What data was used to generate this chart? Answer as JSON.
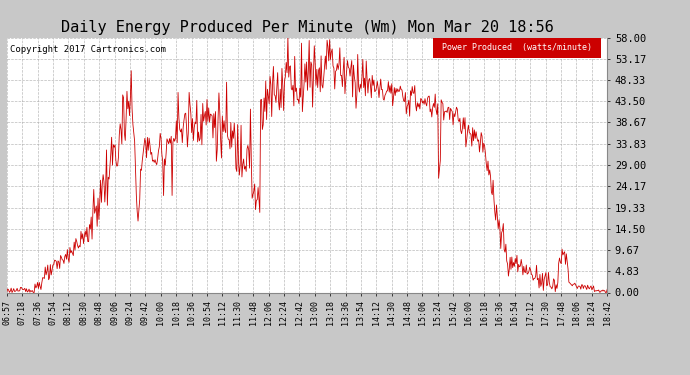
{
  "title": "Daily Energy Produced Per Minute (Wm) Mon Mar 20 18:56",
  "copyright": "Copyright 2017 Cartronics.com",
  "legend_label": "Power Produced  (watts/minute)",
  "legend_bg": "#CC0000",
  "legend_text_color": "#FFFFFF",
  "line_color": "#CC0000",
  "bg_color": "#C8C8C8",
  "plot_bg_color": "#FFFFFF",
  "grid_color": "#AAAAAA",
  "title_fontsize": 11,
  "yticks": [
    0.0,
    4.83,
    9.67,
    14.5,
    19.33,
    24.17,
    29.0,
    33.83,
    38.67,
    43.5,
    48.33,
    53.17,
    58.0
  ],
  "ytick_labels": [
    "0.00",
    "4.83",
    "9.67",
    "14.50",
    "19.33",
    "24.17",
    "29.00",
    "33.83",
    "38.67",
    "43.50",
    "48.33",
    "53.17",
    "58.00"
  ],
  "xtick_labels": [
    "06:57",
    "07:18",
    "07:36",
    "07:54",
    "08:12",
    "08:30",
    "08:48",
    "09:06",
    "09:24",
    "09:42",
    "10:00",
    "10:18",
    "10:36",
    "10:54",
    "11:12",
    "11:30",
    "11:48",
    "12:06",
    "12:24",
    "12:42",
    "13:00",
    "13:18",
    "13:36",
    "13:54",
    "14:12",
    "14:30",
    "14:48",
    "15:06",
    "15:24",
    "15:42",
    "16:00",
    "16:18",
    "16:36",
    "16:54",
    "17:12",
    "17:30",
    "17:48",
    "18:06",
    "18:24",
    "18:42"
  ],
  "ymin": 0.0,
  "ymax": 58.0
}
